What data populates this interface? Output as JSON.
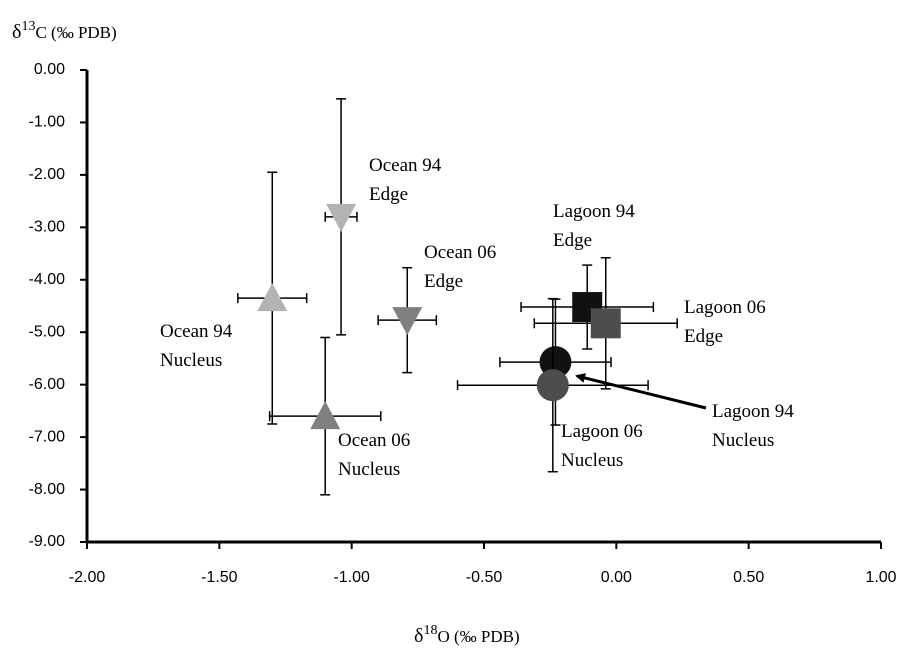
{
  "chart_data": {
    "type": "scatter",
    "x_label": {
      "prefix": "δ",
      "sup": "18",
      "suffix": "O (‰ PDB)"
    },
    "y_label": {
      "prefix": "δ",
      "sup": "13",
      "suffix": "C (‰ PDB)"
    },
    "xlim": [
      -2.0,
      1.0
    ],
    "ylim": [
      -9.0,
      0.0
    ],
    "xticks": [
      {
        "value": -2.0,
        "label": "-2.00"
      },
      {
        "value": -1.5,
        "label": "-1.50"
      },
      {
        "value": -1.0,
        "label": "-1.00"
      },
      {
        "value": -0.5,
        "label": "-0.50"
      },
      {
        "value": 0.0,
        "label": "0.00"
      },
      {
        "value": 0.5,
        "label": "0.50"
      },
      {
        "value": 1.0,
        "label": "1.00"
      }
    ],
    "yticks": [
      {
        "value": 0.0,
        "label": "0.00"
      },
      {
        "value": -1.0,
        "label": "-1.00"
      },
      {
        "value": -2.0,
        "label": "-2.00"
      },
      {
        "value": -3.0,
        "label": "-3.00"
      },
      {
        "value": -4.0,
        "label": "-4.00"
      },
      {
        "value": -5.0,
        "label": "-5.00"
      },
      {
        "value": -6.0,
        "label": "-6.00"
      },
      {
        "value": -7.0,
        "label": "-7.00"
      },
      {
        "value": -8.0,
        "label": "-8.00"
      },
      {
        "value": -9.0,
        "label": "-9.00"
      }
    ],
    "series": [
      {
        "label": [
          "Ocean 94",
          "Nucleus"
        ],
        "marker": "triangle-up",
        "color": "#b3b3b3",
        "x": [
          -1.3
        ],
        "values": [
          -4.35
        ],
        "xerr": [
          0.13
        ],
        "yerr": [
          2.4
        ]
      },
      {
        "label": [
          "Ocean 94",
          "Edge"
        ],
        "marker": "triangle-down",
        "color": "#b3b3b3",
        "x": [
          -1.04
        ],
        "values": [
          -2.8
        ],
        "xerr": [
          0.06
        ],
        "yerr": [
          2.25
        ]
      },
      {
        "label": [
          "Ocean 06",
          "Edge"
        ],
        "marker": "triangle-down",
        "color": "#808080",
        "x": [
          -0.79
        ],
        "values": [
          -4.77
        ],
        "xerr": [
          0.11
        ],
        "yerr": [
          1.0
        ]
      },
      {
        "label": [
          "Ocean 06",
          "Nucleus"
        ],
        "marker": "triangle-up",
        "color": "#808080",
        "x": [
          -1.1
        ],
        "values": [
          -6.6
        ],
        "xerr": [
          0.21
        ],
        "yerr": [
          1.5
        ]
      },
      {
        "label": [
          "Lagoon 94",
          "Edge"
        ],
        "marker": "square",
        "color": "#111111",
        "x": [
          -0.11
        ],
        "values": [
          -4.52
        ],
        "xerr": [
          0.25
        ],
        "yerr": [
          0.8
        ]
      },
      {
        "label": [
          "Lagoon 06",
          "Edge"
        ],
        "marker": "square",
        "color": "#4d4d4d",
        "x": [
          -0.04
        ],
        "values": [
          -4.83
        ],
        "xerr": [
          0.27
        ],
        "yerr": [
          1.25
        ]
      },
      {
        "label": [
          "Lagoon 94",
          "Nucleus"
        ],
        "marker": "circle",
        "color": "#111111",
        "x": [
          -0.23
        ],
        "values": [
          -5.57
        ],
        "xerr": [
          0.21
        ],
        "yerr": [
          1.2
        ]
      },
      {
        "label": [
          "Lagoon 06",
          "Nucleus"
        ],
        "marker": "circle",
        "color": "#4d4d4d",
        "x": [
          -0.24
        ],
        "values": [
          -6.01
        ],
        "xerr": [
          0.36
        ],
        "yerr": [
          1.65
        ]
      }
    ]
  }
}
